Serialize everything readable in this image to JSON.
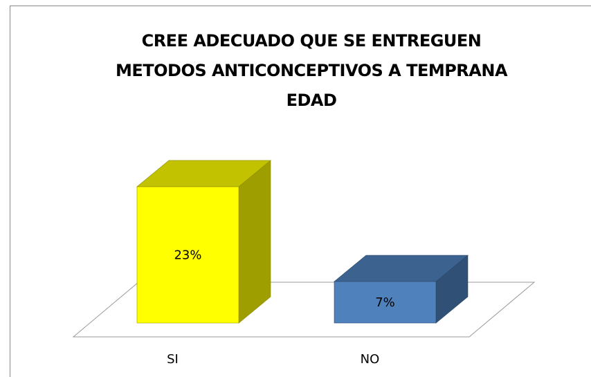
{
  "chart_data": {
    "type": "bar3d",
    "title": "CREE ADECUADO QUE SE ENTREGUEN METODOS ANTICONCEPTIVOS A TEMPRANA EDAD",
    "categories": [
      "SI",
      "NO"
    ],
    "values": [
      23,
      7
    ],
    "value_labels": [
      "23%",
      "7%"
    ],
    "colors": [
      "#ffff00",
      "#4f81bd"
    ]
  }
}
